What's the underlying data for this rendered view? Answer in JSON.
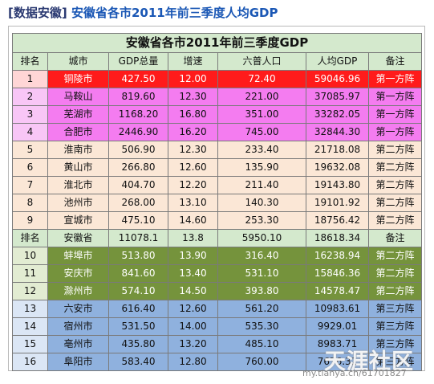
{
  "post": {
    "tag": "[数据安徽]",
    "title": "安徽省各市2011年前三季度人均GDP"
  },
  "table": {
    "title": "安徽省各市2011年前三季度GDP",
    "headers": [
      "排名",
      "城市",
      "GDP总量",
      "增速",
      "六普人口",
      "人均GDP",
      "备注"
    ],
    "rows_top": [
      {
        "rank": "1",
        "city": "铜陵市",
        "gdp": "427.50",
        "growth": "12.00",
        "pop": "72.40",
        "per_capita": "59046.96",
        "note": "第一方阵"
      },
      {
        "rank": "2",
        "city": "马鞍山",
        "gdp": "819.60",
        "growth": "12.30",
        "pop": "221.00",
        "per_capita": "37085.97",
        "note": "第一方阵"
      },
      {
        "rank": "3",
        "city": "芜湖市",
        "gdp": "1168.20",
        "growth": "16.80",
        "pop": "351.00",
        "per_capita": "33282.05",
        "note": "第一方阵"
      },
      {
        "rank": "4",
        "city": "合肥市",
        "gdp": "2446.90",
        "growth": "16.20",
        "pop": "745.00",
        "per_capita": "32844.30",
        "note": "第一方阵"
      },
      {
        "rank": "5",
        "city": "淮南市",
        "gdp": "506.90",
        "growth": "12.30",
        "pop": "233.40",
        "per_capita": "21718.08",
        "note": "第二方阵"
      },
      {
        "rank": "6",
        "city": "黄山市",
        "gdp": "266.80",
        "growth": "12.60",
        "pop": "135.90",
        "per_capita": "19632.08",
        "note": "第二方阵"
      },
      {
        "rank": "7",
        "city": "淮北市",
        "gdp": "404.70",
        "growth": "12.20",
        "pop": "211.40",
        "per_capita": "19143.80",
        "note": "第二方阵"
      },
      {
        "rank": "8",
        "city": "池州市",
        "gdp": "268.00",
        "growth": "13.10",
        "pop": "140.30",
        "per_capita": "19101.92",
        "note": "第二方阵"
      },
      {
        "rank": "9",
        "city": "宣城市",
        "gdp": "475.10",
        "growth": "14.60",
        "pop": "253.30",
        "per_capita": "18756.42",
        "note": "第二方阵"
      }
    ],
    "summary": {
      "rank": "排名",
      "city": "安徽省",
      "gdp": "11078.1",
      "growth": "13.8",
      "pop": "5950.10",
      "per_capita": "18618.34",
      "note": "备注"
    },
    "rows_bottom": [
      {
        "rank": "10",
        "city": "蚌埠市",
        "gdp": "513.80",
        "growth": "13.90",
        "pop": "316.40",
        "per_capita": "16238.94",
        "note": "第二方阵"
      },
      {
        "rank": "11",
        "city": "安庆市",
        "gdp": "841.60",
        "growth": "13.40",
        "pop": "531.10",
        "per_capita": "15846.36",
        "note": "第二方阵"
      },
      {
        "rank": "12",
        "city": "滁州市",
        "gdp": "574.10",
        "growth": "14.50",
        "pop": "393.80",
        "per_capita": "14578.47",
        "note": "第二方阵"
      },
      {
        "rank": "13",
        "city": "六安市",
        "gdp": "616.40",
        "growth": "12.60",
        "pop": "561.20",
        "per_capita": "10983.61",
        "note": "第三方阵"
      },
      {
        "rank": "14",
        "city": "宿州市",
        "gdp": "531.50",
        "growth": "14.00",
        "pop": "535.30",
        "per_capita": "9929.01",
        "note": "第三方阵"
      },
      {
        "rank": "15",
        "city": "亳州市",
        "gdp": "435.80",
        "growth": "13.20",
        "pop": "485.10",
        "per_capita": "8983.71",
        "note": "第三方阵"
      },
      {
        "rank": "16",
        "city": "阜阳市",
        "gdp": "583.40",
        "growth": "12.80",
        "pop": "760.00",
        "per_capita": "7676.32",
        "note": "第三方阵"
      }
    ]
  },
  "watermark": {
    "brand": "天涯社区",
    "url": "my.tianya.cn/61701827"
  },
  "colors": {
    "header_bg": "#d4e9cd",
    "rank1": "#ff1b1b",
    "tier1": "#f47cf0",
    "tier2a": "#fbe7d6",
    "tier2b": "#75933c",
    "tier3": "#8fb1de",
    "title_link": "#1a57b5"
  }
}
